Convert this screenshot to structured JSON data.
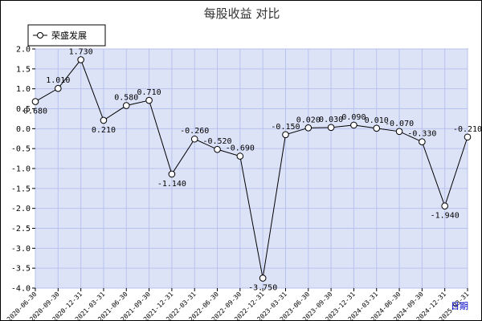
{
  "chart_data": {
    "type": "line",
    "title": "每股收益  对比",
    "xlabel": "日期",
    "ylabel": "",
    "ylim": [
      -4.0,
      2.0
    ],
    "yticks": [
      "2.0",
      "1.5",
      "1.0",
      "0.5",
      "0.0",
      "-0.5",
      "-1.0",
      "-1.5",
      "-2.0",
      "-2.5",
      "-3.0",
      "-3.5",
      "-4.0"
    ],
    "grid": true,
    "legend_placement": "top-left",
    "categories": [
      "2020-06-30",
      "2020-09-30",
      "2020-12-31",
      "2021-03-31",
      "2021-06-30",
      "2021-09-30",
      "2021-12-31",
      "2022-03-31",
      "2022-06-30",
      "2022-09-30",
      "2022-12-31",
      "2023-03-31",
      "2023-06-30",
      "2023-09-30",
      "2023-12-31",
      "2024-03-31",
      "2024-06-30",
      "2024-09-30",
      "2024-12-31",
      "2025-03-31"
    ],
    "series": [
      {
        "name": "荣盛发展",
        "values": [
          0.68,
          1.01,
          1.73,
          0.21,
          0.58,
          0.71,
          -1.14,
          -0.26,
          -0.52,
          -0.69,
          -3.75,
          -0.15,
          0.02,
          0.03,
          0.09,
          0.01,
          -0.07,
          -0.33,
          -1.94,
          -0.21
        ],
        "labels": [
          "0.680",
          "1.010",
          "1.730",
          "0.210",
          "0.580",
          "0.710",
          "-1.140",
          "-0.260",
          "-0.520",
          "-0.690",
          "-3.750",
          "-0.150",
          "0.020",
          "0.030",
          "0.090",
          "0.010",
          "-0.070",
          "-0.330",
          "-1.940",
          "-0.210"
        ]
      }
    ]
  },
  "colors": {
    "plot_background": "#dde3f7",
    "grid": "#b8c2ee",
    "line": "#000000",
    "marker_fill": "#ffffff",
    "xlabel": "#0000cc"
  }
}
